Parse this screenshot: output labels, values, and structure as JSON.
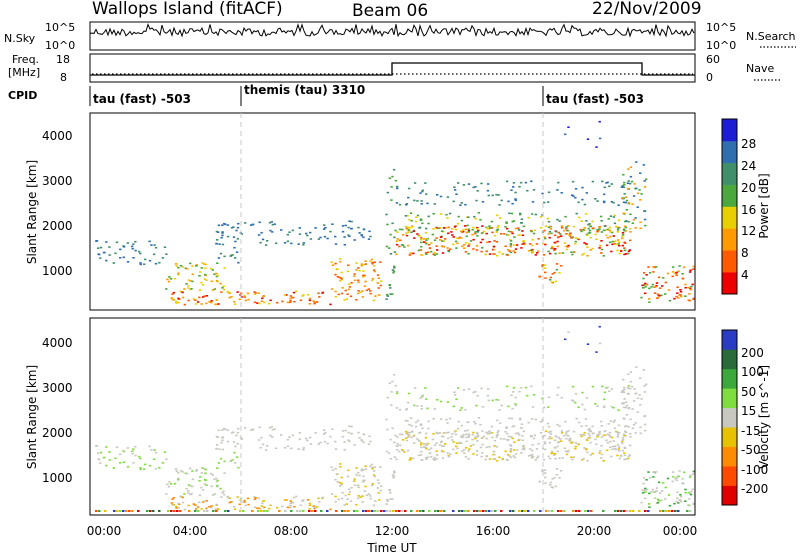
{
  "header": {
    "station": "Wallops Island (fitACF)",
    "beam": "Beam 06",
    "date": "22/Nov/2009"
  },
  "noise_panel": {
    "left_label": "N.Sky",
    "right_label": "N.Search",
    "left_ticks": [
      "10^5",
      "10^0"
    ],
    "right_ticks": [
      "10^5",
      "10^0"
    ]
  },
  "freq_panel": {
    "label_line1": "Freq.",
    "label_line2": "[MHz]",
    "right_label": "Nave",
    "left_ticks": [
      18,
      8
    ],
    "right_ticks": [
      60,
      0
    ]
  },
  "cpid": {
    "label": "CPID",
    "segments": [
      {
        "text": "tau (fast) -503",
        "start_hour": 0
      },
      {
        "text": "themis (tau) 3310",
        "start_hour": 6
      },
      {
        "text": "tau (fast) -503",
        "start_hour": 18
      }
    ]
  },
  "chart_data": [
    {
      "type": "heatmap",
      "panel": "power",
      "xlabel": "Time UT",
      "ylabel": "Slant Range [km]",
      "xlim": [
        0,
        24
      ],
      "ylim": [
        180,
        4600
      ],
      "yticks": [
        1000,
        2000,
        3000,
        4000
      ],
      "colorbar": {
        "label": "Power [dB]",
        "ticks": [
          "4",
          "8",
          "12",
          "16",
          "20",
          "24",
          "28"
        ],
        "colors": [
          "#1d1dd6",
          "#2f6fb0",
          "#3f8f6a",
          "#4aa83c",
          "#e8d000",
          "#ff9a00",
          "#ff5a00",
          "#ee0000"
        ]
      }
    },
    {
      "type": "heatmap",
      "panel": "velocity",
      "xlabel": "Time UT",
      "ylabel": "Slant Range [km]",
      "xlim": [
        0,
        24
      ],
      "ylim": [
        180,
        4600
      ],
      "yticks": [
        1000,
        2000,
        3000,
        4000
      ],
      "xticks": [
        "00:00",
        "04:00",
        "08:00",
        "12:00",
        "16:00",
        "20:00",
        "00:00"
      ],
      "colorbar": {
        "label": "Velocity [m s^-1]",
        "ticks": [
          "200",
          "100",
          "50",
          "15",
          "-15",
          "-50",
          "-100",
          "-200"
        ],
        "colors": [
          "#2b3cc4",
          "#2a6b3a",
          "#3aa83a",
          "#7fdd3f",
          "#c8c8c0",
          "#e6c200",
          "#ff8c00",
          "#ff4a00",
          "#e00000"
        ]
      }
    }
  ]
}
